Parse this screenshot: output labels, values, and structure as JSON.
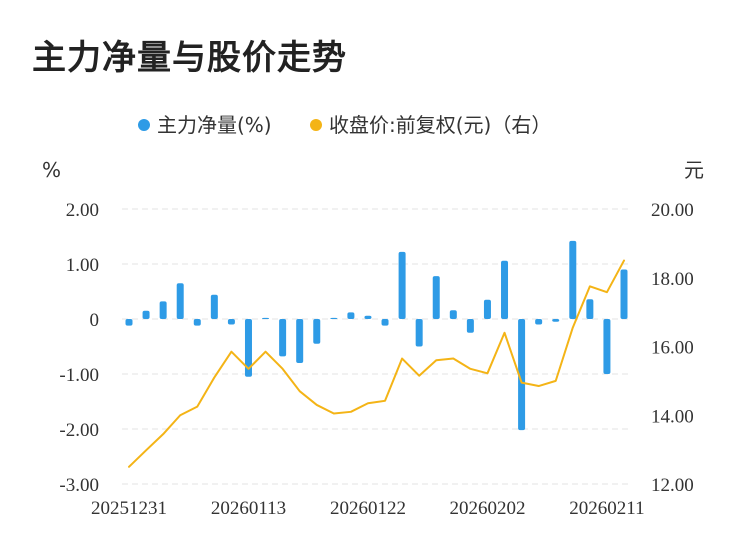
{
  "page": {
    "title": "主力净量与股价走势"
  },
  "chart_data": {
    "type": "bar+line",
    "legend": [
      {
        "label": "主力净量(%)",
        "color": "#2e9be6"
      },
      {
        "label": "收盘价:前复权(元)（右）",
        "color": "#f4b416"
      }
    ],
    "left_unit": "%",
    "right_unit": "元",
    "left_axis": {
      "min": -3,
      "max": 2,
      "ticks": [
        2,
        1,
        0,
        -1,
        -2,
        -3
      ],
      "tick_labels": [
        "2.00",
        "1.00",
        "0",
        "-1.00",
        "-2.00",
        "-3.00"
      ]
    },
    "right_axis": {
      "min": 12,
      "max": 20,
      "ticks": [
        20,
        18,
        16,
        14,
        12
      ],
      "tick_labels": [
        "20.00",
        "18.00",
        "16.00",
        "14.00",
        "12.00"
      ]
    },
    "x_tick_labels": [
      {
        "index": 0,
        "label": "20251231"
      },
      {
        "index": 7,
        "label": "20260113"
      },
      {
        "index": 14,
        "label": "20260122"
      },
      {
        "index": 21,
        "label": "20260202"
      },
      {
        "index": 28,
        "label": "20260211"
      }
    ],
    "series": [
      {
        "name": "主力净量(%)",
        "type": "bar",
        "axis": "left",
        "color": "#2e9be6",
        "values": [
          -0.12,
          0.15,
          0.32,
          0.65,
          -0.12,
          0.44,
          -0.1,
          -1.05,
          0.02,
          -0.68,
          -0.8,
          -0.45,
          0.02,
          0.12,
          0.06,
          -0.12,
          1.22,
          -0.5,
          0.78,
          0.16,
          -0.25,
          0.35,
          1.06,
          -2.02,
          -0.1,
          -0.05,
          1.42,
          0.36,
          -1.0,
          0.9
        ]
      },
      {
        "name": "收盘价:前复权(元)（右）",
        "type": "line",
        "axis": "right",
        "color": "#f4b416",
        "values": [
          12.5,
          12.98,
          13.45,
          14.0,
          14.25,
          15.1,
          15.85,
          15.35,
          15.85,
          15.35,
          14.7,
          14.3,
          14.05,
          14.1,
          14.35,
          14.42,
          15.65,
          15.15,
          15.6,
          15.65,
          15.35,
          15.22,
          16.4,
          14.95,
          14.85,
          15.0,
          16.55,
          17.75,
          17.58,
          18.5
        ]
      }
    ]
  }
}
